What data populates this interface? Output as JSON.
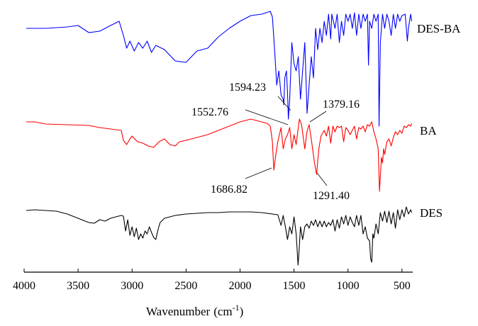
{
  "chart_data": {
    "type": "line",
    "title": "",
    "xlabel": "Wavenumber",
    "xlabel_unit": "(cm",
    "xlabel_exponent": "-1",
    "xlabel_close": ")",
    "xlim": [
      4000,
      400
    ],
    "x_reversed": true,
    "x_ticks": [
      4000,
      3500,
      3000,
      2500,
      2000,
      1500,
      1000,
      500
    ],
    "x_tick_labels": [
      "4000",
      "3500",
      "3000",
      "2500",
      "2000",
      "1500",
      "1000",
      "500"
    ],
    "y_axis_shown": false,
    "grid": false,
    "series": [
      {
        "name": "DES-BA",
        "color": "#0000ff",
        "points": [
          [
            3980,
            40
          ],
          [
            3800,
            40
          ],
          [
            3600,
            38
          ],
          [
            3500,
            36
          ],
          [
            3400,
            46
          ],
          [
            3300,
            44
          ],
          [
            3200,
            36
          ],
          [
            3120,
            30
          ],
          [
            3080,
            50
          ],
          [
            3050,
            68
          ],
          [
            3020,
            58
          ],
          [
            2980,
            72
          ],
          [
            2940,
            60
          ],
          [
            2900,
            68
          ],
          [
            2860,
            58
          ],
          [
            2820,
            74
          ],
          [
            2780,
            64
          ],
          [
            2700,
            70
          ],
          [
            2600,
            86
          ],
          [
            2500,
            88
          ],
          [
            2400,
            72
          ],
          [
            2300,
            68
          ],
          [
            2200,
            52
          ],
          [
            2100,
            40
          ],
          [
            2000,
            30
          ],
          [
            1900,
            22
          ],
          [
            1800,
            20
          ],
          [
            1720,
            16
          ],
          [
            1700,
            24
          ],
          [
            1680,
            70
          ],
          [
            1660,
            120
          ],
          [
            1640,
            100
          ],
          [
            1620,
            134
          ],
          [
            1600,
            140
          ],
          [
            1594,
            148
          ],
          [
            1585,
            110
          ],
          [
            1570,
            100
          ],
          [
            1560,
            130
          ],
          [
            1552,
            168
          ],
          [
            1540,
            140
          ],
          [
            1520,
            60
          ],
          [
            1500,
            90
          ],
          [
            1480,
            100
          ],
          [
            1460,
            80
          ],
          [
            1450,
            110
          ],
          [
            1440,
            140
          ],
          [
            1420,
            100
          ],
          [
            1400,
            60
          ],
          [
            1379,
            160
          ],
          [
            1360,
            120
          ],
          [
            1340,
            80
          ],
          [
            1320,
            110
          ],
          [
            1300,
            40
          ],
          [
            1280,
            70
          ],
          [
            1260,
            40
          ],
          [
            1240,
            60
          ],
          [
            1220,
            30
          ],
          [
            1200,
            50
          ],
          [
            1180,
            20
          ],
          [
            1160,
            55
          ],
          [
            1150,
            20
          ],
          [
            1120,
            40
          ],
          [
            1100,
            20
          ],
          [
            1080,
            60
          ],
          [
            1060,
            30
          ],
          [
            1040,
            50
          ],
          [
            1020,
            20
          ],
          [
            1000,
            30
          ],
          [
            980,
            20
          ],
          [
            960,
            40
          ],
          [
            940,
            18
          ],
          [
            920,
            50
          ],
          [
            900,
            20
          ],
          [
            880,
            40
          ],
          [
            860,
            20
          ],
          [
            840,
            30
          ],
          [
            820,
            20
          ],
          [
            810,
            92
          ],
          [
            800,
            30
          ],
          [
            780,
            40
          ],
          [
            760,
            20
          ],
          [
            740,
            30
          ],
          [
            720,
            20
          ],
          [
            712,
            178
          ],
          [
            700,
            60
          ],
          [
            680,
            20
          ],
          [
            660,
            40
          ],
          [
            640,
            20
          ],
          [
            620,
            30
          ],
          [
            600,
            50
          ],
          [
            580,
            20
          ],
          [
            560,
            40
          ],
          [
            540,
            20
          ],
          [
            520,
            30
          ],
          [
            500,
            22
          ],
          [
            470,
            20
          ],
          [
            450,
            58
          ],
          [
            440,
            40
          ],
          [
            420,
            20
          ],
          [
            410,
            30
          ]
        ]
      },
      {
        "name": "BA",
        "color": "#ff0000",
        "points": [
          [
            3980,
            172
          ],
          [
            3900,
            172
          ],
          [
            3800,
            175
          ],
          [
            3600,
            176
          ],
          [
            3400,
            177
          ],
          [
            3300,
            180
          ],
          [
            3200,
            182
          ],
          [
            3100,
            184
          ],
          [
            3080,
            198
          ],
          [
            3050,
            204
          ],
          [
            3020,
            196
          ],
          [
            3000,
            192
          ],
          [
            2950,
            200
          ],
          [
            2900,
            202
          ],
          [
            2850,
            206
          ],
          [
            2800,
            208
          ],
          [
            2750,
            200
          ],
          [
            2700,
            196
          ],
          [
            2650,
            204
          ],
          [
            2600,
            206
          ],
          [
            2560,
            200
          ],
          [
            2500,
            198
          ],
          [
            2400,
            194
          ],
          [
            2300,
            190
          ],
          [
            2200,
            184
          ],
          [
            2100,
            178
          ],
          [
            2000,
            172
          ],
          [
            1900,
            168
          ],
          [
            1800,
            172
          ],
          [
            1750,
            174
          ],
          [
            1720,
            178
          ],
          [
            1700,
            200
          ],
          [
            1687,
            240
          ],
          [
            1670,
            220
          ],
          [
            1650,
            200
          ],
          [
            1620,
            180
          ],
          [
            1600,
            210
          ],
          [
            1580,
            196
          ],
          [
            1560,
            190
          ],
          [
            1540,
            180
          ],
          [
            1520,
            210
          ],
          [
            1500,
            190
          ],
          [
            1480,
            204
          ],
          [
            1460,
            180
          ],
          [
            1450,
            168
          ],
          [
            1430,
            176
          ],
          [
            1400,
            210
          ],
          [
            1380,
            186
          ],
          [
            1360,
            176
          ],
          [
            1340,
            196
          ],
          [
            1310,
            230
          ],
          [
            1291,
            246
          ],
          [
            1270,
            210
          ],
          [
            1250,
            192
          ],
          [
            1220,
            184
          ],
          [
            1200,
            192
          ],
          [
            1180,
            178
          ],
          [
            1160,
            202
          ],
          [
            1140,
            178
          ],
          [
            1120,
            186
          ],
          [
            1100,
            178
          ],
          [
            1080,
            180
          ],
          [
            1060,
            178
          ],
          [
            1040,
            200
          ],
          [
            1020,
            180
          ],
          [
            1000,
            184
          ],
          [
            980,
            190
          ],
          [
            940,
            178
          ],
          [
            920,
            196
          ],
          [
            900,
            180
          ],
          [
            880,
            182
          ],
          [
            860,
            178
          ],
          [
            840,
            186
          ],
          [
            820,
            176
          ],
          [
            800,
            178
          ],
          [
            780,
            172
          ],
          [
            760,
            186
          ],
          [
            740,
            196
          ],
          [
            720,
            210
          ],
          [
            708,
            270
          ],
          [
            690,
            222
          ],
          [
            680,
            230
          ],
          [
            670,
            210
          ],
          [
            660,
            218
          ],
          [
            640,
            200
          ],
          [
            620,
            196
          ],
          [
            600,
            206
          ],
          [
            580,
            194
          ],
          [
            560,
            186
          ],
          [
            540,
            190
          ],
          [
            520,
            184
          ],
          [
            500,
            188
          ],
          [
            480,
            178
          ],
          [
            460,
            180
          ],
          [
            440,
            176
          ],
          [
            420,
            178
          ],
          [
            410,
            174
          ]
        ]
      },
      {
        "name": "DES",
        "color": "#000000",
        "points": [
          [
            3980,
            297
          ],
          [
            3900,
            296
          ],
          [
            3800,
            297
          ],
          [
            3700,
            298
          ],
          [
            3600,
            302
          ],
          [
            3500,
            308
          ],
          [
            3400,
            314
          ],
          [
            3350,
            315
          ],
          [
            3300,
            310
          ],
          [
            3250,
            312
          ],
          [
            3200,
            308
          ],
          [
            3150,
            306
          ],
          [
            3100,
            304
          ],
          [
            3080,
            305
          ],
          [
            3060,
            326
          ],
          [
            3040,
            310
          ],
          [
            3020,
            332
          ],
          [
            3000,
            320
          ],
          [
            2980,
            334
          ],
          [
            2960,
            322
          ],
          [
            2940,
            338
          ],
          [
            2920,
            330
          ],
          [
            2900,
            336
          ],
          [
            2880,
            326
          ],
          [
            2860,
            330
          ],
          [
            2840,
            320
          ],
          [
            2820,
            328
          ],
          [
            2800,
            335
          ],
          [
            2780,
            338
          ],
          [
            2760,
            324
          ],
          [
            2740,
            314
          ],
          [
            2700,
            308
          ],
          [
            2650,
            306
          ],
          [
            2600,
            304
          ],
          [
            2500,
            302
          ],
          [
            2400,
            301
          ],
          [
            2300,
            300
          ],
          [
            2200,
            300
          ],
          [
            2100,
            299
          ],
          [
            2000,
            299
          ],
          [
            1900,
            299
          ],
          [
            1800,
            300
          ],
          [
            1700,
            302
          ],
          [
            1650,
            303
          ],
          [
            1620,
            318
          ],
          [
            1600,
            304
          ],
          [
            1580,
            320
          ],
          [
            1560,
            338
          ],
          [
            1540,
            320
          ],
          [
            1520,
            330
          ],
          [
            1500,
            306
          ],
          [
            1480,
            330
          ],
          [
            1462,
            374
          ],
          [
            1450,
            346
          ],
          [
            1440,
            320
          ],
          [
            1420,
            338
          ],
          [
            1400,
            320
          ],
          [
            1380,
            316
          ],
          [
            1360,
            322
          ],
          [
            1340,
            312
          ],
          [
            1320,
            318
          ],
          [
            1300,
            310
          ],
          [
            1280,
            320
          ],
          [
            1260,
            312
          ],
          [
            1240,
            320
          ],
          [
            1220,
            312
          ],
          [
            1200,
            320
          ],
          [
            1180,
            314
          ],
          [
            1160,
            318
          ],
          [
            1140,
            310
          ],
          [
            1120,
            326
          ],
          [
            1100,
            310
          ],
          [
            1080,
            322
          ],
          [
            1060,
            306
          ],
          [
            1040,
            316
          ],
          [
            1020,
            304
          ],
          [
            1000,
            318
          ],
          [
            980,
            306
          ],
          [
            960,
            314
          ],
          [
            940,
            320
          ],
          [
            920,
            304
          ],
          [
            900,
            318
          ],
          [
            880,
            304
          ],
          [
            860,
            330
          ],
          [
            840,
            320
          ],
          [
            820,
            336
          ],
          [
            800,
            340
          ],
          [
            790,
            365
          ],
          [
            780,
            370
          ],
          [
            770,
            330
          ],
          [
            760,
            336
          ],
          [
            740,
            316
          ],
          [
            720,
            330
          ],
          [
            700,
            300
          ],
          [
            680,
            312
          ],
          [
            660,
            298
          ],
          [
            640,
            314
          ],
          [
            620,
            298
          ],
          [
            600,
            316
          ],
          [
            580,
            300
          ],
          [
            560,
            322
          ],
          [
            540,
            296
          ],
          [
            520,
            310
          ],
          [
            500,
            296
          ],
          [
            480,
            306
          ],
          [
            460,
            292
          ],
          [
            440,
            302
          ],
          [
            420,
            296
          ],
          [
            410,
            300
          ]
        ]
      }
    ],
    "series_labels": [
      "DES-BA",
      "BA",
      "DES"
    ],
    "annotations": [
      {
        "text": "1594.23",
        "x": 1594.23,
        "series": "DES-BA"
      },
      {
        "text": "1552.76",
        "x": 1552.76,
        "series": "DES-BA"
      },
      {
        "text": "1379.16",
        "x": 1379.16,
        "series": "DES-BA"
      },
      {
        "text": "1686.82",
        "x": 1686.82,
        "series": "BA"
      },
      {
        "text": "1291.40",
        "x": 1291.4,
        "series": "BA"
      }
    ]
  }
}
